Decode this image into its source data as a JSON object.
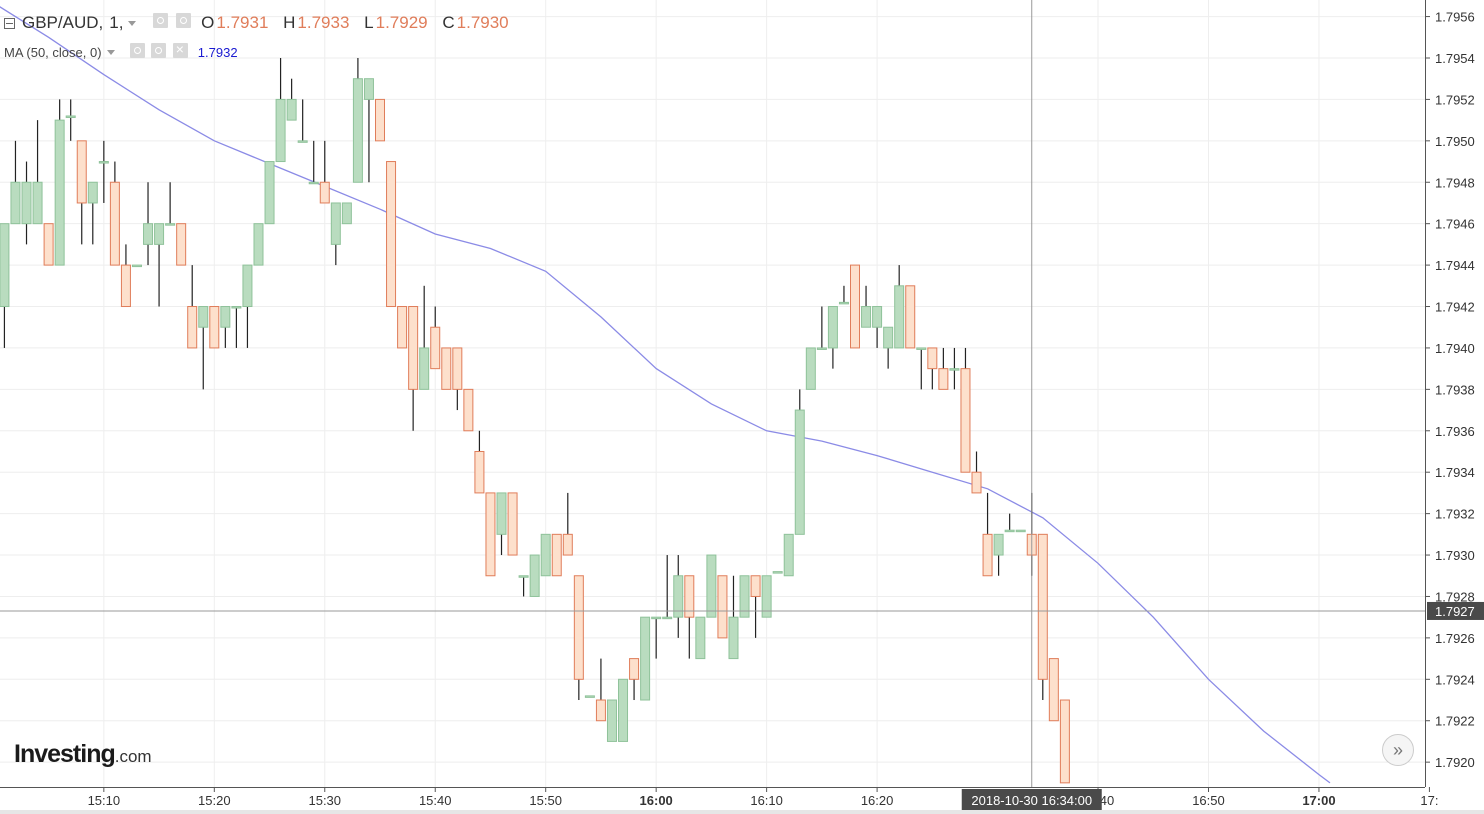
{
  "header": {
    "symbol": "GBP/AUD,",
    "interval": "1,",
    "ohlc": [
      {
        "key": "O",
        "value": "1.7931"
      },
      {
        "key": "H",
        "value": "1.7933"
      },
      {
        "key": "L",
        "value": "1.7929"
      },
      {
        "key": "C",
        "value": "1.7930"
      }
    ]
  },
  "indicator": {
    "label": "MA (50, close, 0)",
    "value": "1.7932"
  },
  "logo": {
    "brand": "Investing",
    "domain": ".com"
  },
  "scroll_button": {
    "symbol": "»"
  },
  "colors": {
    "up": "#b9dcbf",
    "up_border": "#8fc29a",
    "down": "#fde0cc",
    "down_border": "#e07d5a",
    "ma": "#8b8be6",
    "wick": "#222222",
    "grid": "#eeeeee",
    "crosshair": "#999999"
  },
  "chart_data": {
    "type": "candlestick",
    "ylim": [
      1.79188,
      1.79568
    ],
    "y_ticks": [
      "1.7956",
      "1.7954",
      "1.7952",
      "1.7950",
      "1.7948",
      "1.7946",
      "1.7944",
      "1.7942",
      "1.7940",
      "1.7938",
      "1.7936",
      "1.7934",
      "1.7932",
      "1.7930",
      "1.7928",
      "1.7926",
      "1.7924",
      "1.7922",
      "1.7920"
    ],
    "x_labels": [
      {
        "t": "15:10",
        "bold": false
      },
      {
        "t": "15:20",
        "bold": false
      },
      {
        "t": "15:30",
        "bold": false
      },
      {
        "t": "15:40",
        "bold": false
      },
      {
        "t": "15:50",
        "bold": false
      },
      {
        "t": "16:00",
        "bold": true
      },
      {
        "t": "16:10",
        "bold": false
      },
      {
        "t": "16:20",
        "bold": false
      },
      {
        "t": "16:40",
        "bold": false
      },
      {
        "t": "16:50",
        "bold": false
      },
      {
        "t": "17:00",
        "bold": true
      },
      {
        "t": "17:",
        "bold": false
      }
    ],
    "time_range": [
      "15:00.6",
      "17:09.6"
    ],
    "crosshair": {
      "time_label": "2018-10-30 16:34:00",
      "price_label": "1.7927",
      "time": "16:34",
      "price": 1.79273
    },
    "candles": [
      [
        "15:01",
        1.7942,
        1.7946,
        1.794,
        1.7946
      ],
      [
        "15:02",
        1.7946,
        1.795,
        1.7946,
        1.7948
      ],
      [
        "15:03",
        1.7946,
        1.7949,
        1.7945,
        1.7948
      ],
      [
        "15:04",
        1.7946,
        1.7951,
        1.7946,
        1.7948
      ],
      [
        "15:05",
        1.7946,
        1.7946,
        1.7944,
        1.7944
      ],
      [
        "15:06",
        1.7944,
        1.7952,
        1.7944,
        1.7951
      ],
      [
        "15:07",
        1.79512,
        1.7952,
        1.795,
        1.79512
      ],
      [
        "15:08",
        1.795,
        1.795,
        1.7945,
        1.7947
      ],
      [
        "15:09",
        1.7947,
        1.7948,
        1.7945,
        1.7948
      ],
      [
        "15:10",
        1.7949,
        1.795,
        1.7947,
        1.7949
      ],
      [
        "15:11",
        1.7948,
        1.7949,
        1.7944,
        1.7944
      ],
      [
        "15:12",
        1.7944,
        1.7945,
        1.7942,
        1.7942
      ],
      [
        "15:13",
        1.7944,
        1.7944,
        1.7944,
        1.7944
      ],
      [
        "15:14",
        1.7945,
        1.7948,
        1.7944,
        1.7946
      ],
      [
        "15:15",
        1.7945,
        1.7946,
        1.7942,
        1.7946
      ],
      [
        "15:16",
        1.7946,
        1.7948,
        1.7946,
        1.7946
      ],
      [
        "15:17",
        1.7946,
        1.7946,
        1.7944,
        1.7944
      ],
      [
        "15:18",
        1.7942,
        1.7944,
        1.794,
        1.794
      ],
      [
        "15:19",
        1.7941,
        1.7942,
        1.7938,
        1.7942
      ],
      [
        "15:20",
        1.7942,
        1.7942,
        1.794,
        1.794
      ],
      [
        "15:21",
        1.7941,
        1.7942,
        1.794,
        1.7942
      ],
      [
        "15:22",
        1.7942,
        1.7942,
        1.794,
        1.7942
      ],
      [
        "15:23",
        1.7942,
        1.7944,
        1.794,
        1.7944
      ],
      [
        "15:24",
        1.7944,
        1.7946,
        1.7944,
        1.7946
      ],
      [
        "15:25",
        1.7946,
        1.7949,
        1.7946,
        1.7949
      ],
      [
        "15:26",
        1.7949,
        1.7954,
        1.7949,
        1.7952
      ],
      [
        "15:27",
        1.7951,
        1.7953,
        1.7951,
        1.7952
      ],
      [
        "15:28",
        1.795,
        1.7952,
        1.795,
        1.795
      ],
      [
        "15:29",
        1.7948,
        1.795,
        1.7948,
        1.7948
      ],
      [
        "15:30",
        1.7948,
        1.795,
        1.7947,
        1.7947
      ],
      [
        "15:31",
        1.7945,
        1.7947,
        1.7944,
        1.7947
      ],
      [
        "15:32",
        1.7946,
        1.7947,
        1.7946,
        1.7947
      ],
      [
        "15:33",
        1.7948,
        1.7954,
        1.7948,
        1.7953
      ],
      [
        "15:34",
        1.7952,
        1.7953,
        1.7948,
        1.7953
      ],
      [
        "15:35",
        1.7952,
        1.7952,
        1.795,
        1.795
      ],
      [
        "15:36",
        1.7949,
        1.7949,
        1.7942,
        1.7942
      ],
      [
        "15:37",
        1.7942,
        1.7942,
        1.794,
        1.794
      ],
      [
        "15:38",
        1.7942,
        1.7942,
        1.7936,
        1.7938
      ],
      [
        "15:39",
        1.7938,
        1.7943,
        1.7938,
        1.794
      ],
      [
        "15:40",
        1.7941,
        1.7942,
        1.7939,
        1.7939
      ],
      [
        "15:41",
        1.794,
        1.794,
        1.7938,
        1.7938
      ],
      [
        "15:42",
        1.794,
        1.794,
        1.7937,
        1.7938
      ],
      [
        "15:43",
        1.7938,
        1.7938,
        1.7936,
        1.7936
      ],
      [
        "15:44",
        1.7935,
        1.7936,
        1.7933,
        1.7933
      ],
      [
        "15:45",
        1.7933,
        1.7933,
        1.7929,
        1.7929
      ],
      [
        "15:46",
        1.7931,
        1.7933,
        1.793,
        1.7933
      ],
      [
        "15:47",
        1.7933,
        1.7933,
        1.793,
        1.793
      ],
      [
        "15:48",
        1.7929,
        1.7929,
        1.7928,
        1.7929
      ],
      [
        "15:49",
        1.7928,
        1.793,
        1.7928,
        1.793
      ],
      [
        "15:50",
        1.7929,
        1.7931,
        1.7929,
        1.7931
      ],
      [
        "15:51",
        1.7931,
        1.7931,
        1.7929,
        1.7929
      ],
      [
        "15:52",
        1.7931,
        1.7933,
        1.793,
        1.793
      ],
      [
        "15:53",
        1.7929,
        1.7929,
        1.7923,
        1.7924
      ],
      [
        "15:54",
        1.79232,
        1.79232,
        1.79232,
        1.79232
      ],
      [
        "15:55",
        1.7923,
        1.7925,
        1.7922,
        1.7922
      ],
      [
        "15:56",
        1.7921,
        1.7923,
        1.7921,
        1.7923
      ],
      [
        "15:57",
        1.7921,
        1.7924,
        1.7921,
        1.7924
      ],
      [
        "15:58",
        1.7925,
        1.7925,
        1.7923,
        1.7924
      ],
      [
        "15:59",
        1.7923,
        1.7927,
        1.7923,
        1.7927
      ],
      [
        "16:00",
        1.7927,
        1.7927,
        1.7925,
        1.7927
      ],
      [
        "16:01",
        1.7927,
        1.793,
        1.7927,
        1.7927
      ],
      [
        "16:02",
        1.7927,
        1.793,
        1.7926,
        1.7929
      ],
      [
        "16:03",
        1.7929,
        1.7929,
        1.7925,
        1.7927
      ],
      [
        "16:04",
        1.7925,
        1.7927,
        1.7925,
        1.7927
      ],
      [
        "16:05",
        1.7927,
        1.793,
        1.7927,
        1.793
      ],
      [
        "16:06",
        1.7929,
        1.7929,
        1.7926,
        1.7926
      ],
      [
        "16:07",
        1.7925,
        1.7929,
        1.7925,
        1.7927
      ],
      [
        "16:08",
        1.7927,
        1.7929,
        1.7927,
        1.7929
      ],
      [
        "16:09",
        1.7929,
        1.7929,
        1.7926,
        1.7928
      ],
      [
        "16:10",
        1.7927,
        1.7929,
        1.7927,
        1.7929
      ],
      [
        "16:11",
        1.79292,
        1.79292,
        1.79292,
        1.79292
      ],
      [
        "16:12",
        1.7929,
        1.7931,
        1.7929,
        1.7931
      ],
      [
        "16:13",
        1.7931,
        1.7938,
        1.7931,
        1.7937
      ],
      [
        "16:14",
        1.7938,
        1.794,
        1.7938,
        1.794
      ],
      [
        "16:15",
        1.794,
        1.7942,
        1.794,
        1.794
      ],
      [
        "16:16",
        1.794,
        1.7942,
        1.7939,
        1.7942
      ],
      [
        "16:17",
        1.79422,
        1.7943,
        1.79422,
        1.79422
      ],
      [
        "16:18",
        1.7944,
        1.7944,
        1.794,
        1.794
      ],
      [
        "16:19",
        1.7941,
        1.7943,
        1.7941,
        1.7942
      ],
      [
        "16:20",
        1.7941,
        1.7942,
        1.794,
        1.7942
      ],
      [
        "16:21",
        1.794,
        1.7941,
        1.7939,
        1.7941
      ],
      [
        "16:22",
        1.794,
        1.7944,
        1.794,
        1.7943
      ],
      [
        "16:23",
        1.7943,
        1.7943,
        1.794,
        1.794
      ],
      [
        "16:24",
        1.794,
        1.794,
        1.7938,
        1.794
      ],
      [
        "16:25",
        1.794,
        1.794,
        1.7938,
        1.7939
      ],
      [
        "16:26",
        1.7939,
        1.794,
        1.7938,
        1.7938
      ],
      [
        "16:27",
        1.7939,
        1.794,
        1.7938,
        1.7939
      ],
      [
        "16:28",
        1.7939,
        1.794,
        1.7934,
        1.7934
      ],
      [
        "16:29",
        1.7934,
        1.7935,
        1.7933,
        1.7933
      ],
      [
        "16:30",
        1.7931,
        1.7933,
        1.7929,
        1.7929
      ],
      [
        "16:31",
        1.793,
        1.7931,
        1.7929,
        1.7931
      ],
      [
        "16:32",
        1.79312,
        1.7932,
        1.79312,
        1.79312
      ],
      [
        "16:33",
        1.79312,
        1.79312,
        1.79312,
        1.79312
      ],
      [
        "16:34",
        1.7931,
        1.7933,
        1.7929,
        1.793
      ],
      [
        "16:35",
        1.7931,
        1.7931,
        1.7923,
        1.7924
      ],
      [
        "16:36",
        1.7925,
        1.7925,
        1.7922,
        1.7922
      ],
      [
        "16:37",
        1.7923,
        1.7923,
        1.7919,
        1.7919
      ]
    ],
    "ma_series": [
      [
        "14:59",
        1.7957
      ],
      [
        "15:05",
        1.7955
      ],
      [
        "15:10",
        1.79532
      ],
      [
        "15:15",
        1.79515
      ],
      [
        "15:20",
        1.795
      ],
      [
        "15:25",
        1.79489
      ],
      [
        "15:30",
        1.79478
      ],
      [
        "15:35",
        1.79467
      ],
      [
        "15:40",
        1.79455
      ],
      [
        "15:45",
        1.79448
      ],
      [
        "15:50",
        1.79437
      ],
      [
        "15:55",
        1.79415
      ],
      [
        "16:00",
        1.7939
      ],
      [
        "16:05",
        1.79373
      ],
      [
        "16:10",
        1.7936
      ],
      [
        "16:15",
        1.79355
      ],
      [
        "16:20",
        1.79348
      ],
      [
        "16:25",
        1.7934
      ],
      [
        "16:30",
        1.79332
      ],
      [
        "16:35",
        1.79318
      ],
      [
        "16:40",
        1.79296
      ],
      [
        "16:45",
        1.7927
      ],
      [
        "16:50",
        1.7924
      ],
      [
        "16:55",
        1.79215
      ],
      [
        "17:00",
        1.79194
      ],
      [
        "17:01",
        1.7919
      ]
    ]
  }
}
